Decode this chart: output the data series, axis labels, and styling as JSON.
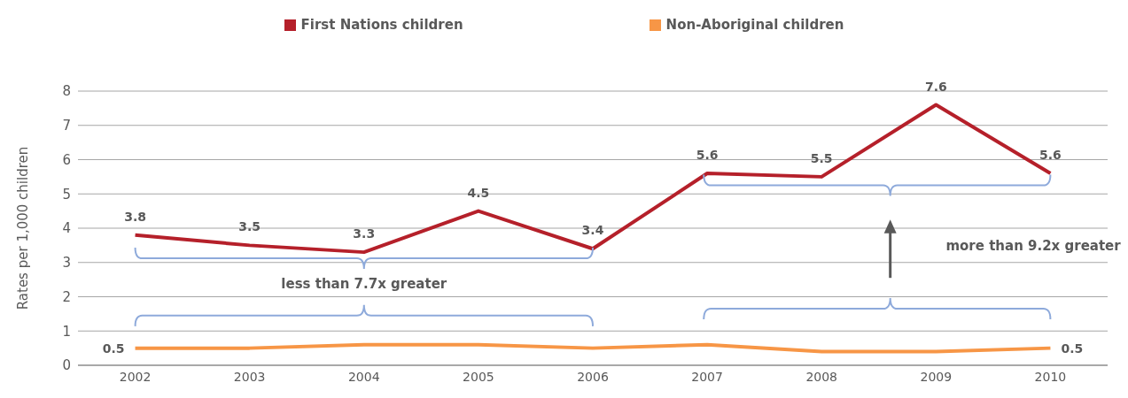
{
  "chart_data": {
    "type": "line",
    "ylabel": "Rates per 1,000 children",
    "categories": [
      "2002",
      "2003",
      "2004",
      "2005",
      "2006",
      "2007",
      "2008",
      "2009",
      "2010"
    ],
    "series": [
      {
        "name": "First Nations children",
        "color": "#b5202a",
        "values": [
          3.8,
          3.5,
          3.3,
          4.5,
          3.4,
          5.6,
          5.5,
          7.6,
          5.6
        ],
        "value_labels": [
          "3.8",
          "3.5",
          "3.3",
          "4.5",
          "3.4",
          "5.6",
          "5.5",
          "7.6",
          "5.6"
        ]
      },
      {
        "name": "Non-Aboriginal children",
        "color": "#f79646",
        "values": [
          0.5,
          0.5,
          0.6,
          0.6,
          0.5,
          0.6,
          0.4,
          0.4,
          0.5
        ],
        "value_labels": [
          "0.5",
          null,
          null,
          null,
          null,
          null,
          null,
          null,
          "0.5"
        ]
      }
    ],
    "ylim": [
      0,
      8
    ],
    "yticks": [
      0,
      1,
      2,
      3,
      4,
      5,
      6,
      7,
      8
    ],
    "grid": "y",
    "legend": "top",
    "marker": "none",
    "annotations": [
      "less than 7.7x greater",
      "more than 9.2x greater"
    ]
  }
}
